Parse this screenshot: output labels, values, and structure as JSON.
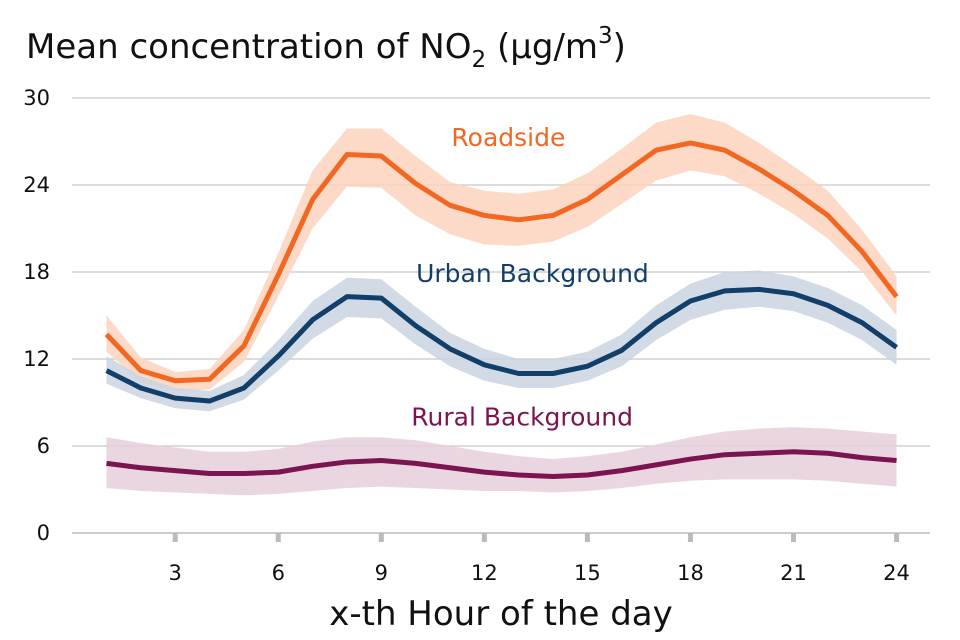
{
  "chart_data": {
    "type": "line",
    "title_parts": {
      "pre": "Mean concentration of NO",
      "sub": "2",
      "mid": " (µg/m",
      "sup": "3",
      "post": ")"
    },
    "xlabel": "x-th Hour of the day",
    "ylabel": "",
    "x": [
      1,
      2,
      3,
      4,
      5,
      6,
      7,
      8,
      9,
      10,
      11,
      12,
      13,
      14,
      15,
      16,
      17,
      18,
      19,
      20,
      21,
      22,
      23,
      24
    ],
    "xlim": [
      0,
      25
    ],
    "ylim": [
      0,
      30
    ],
    "xticks": [
      3,
      6,
      9,
      12,
      15,
      18,
      21,
      24
    ],
    "yticks": [
      0,
      6,
      12,
      18,
      24,
      30
    ],
    "grid": "horizontal",
    "series": [
      {
        "name": "Roadside",
        "color": "#f26722",
        "band_color": "#fbd3bd",
        "label_at": [
          12.7,
          26.7
        ],
        "values": [
          13.7,
          11.2,
          10.5,
          10.6,
          12.9,
          17.8,
          23.0,
          26.1,
          26.0,
          24.1,
          22.6,
          21.9,
          21.6,
          21.9,
          23.0,
          24.7,
          26.4,
          26.9,
          26.4,
          25.1,
          23.6,
          21.9,
          19.4,
          16.3
        ],
        "lower": [
          12.5,
          10.4,
          9.8,
          9.9,
          11.8,
          16.3,
          21.0,
          23.9,
          23.8,
          21.9,
          20.6,
          19.9,
          19.8,
          20.1,
          21.1,
          22.7,
          24.3,
          25.0,
          24.6,
          23.4,
          22.0,
          20.3,
          18.0,
          15.0
        ],
        "upper": [
          15.0,
          12.1,
          11.1,
          11.3,
          14.0,
          19.3,
          25.0,
          27.9,
          27.9,
          26.0,
          24.2,
          23.6,
          23.4,
          23.7,
          24.8,
          26.5,
          28.3,
          28.9,
          28.3,
          26.9,
          25.3,
          23.6,
          20.9,
          17.7
        ]
      },
      {
        "name": "Urban Background",
        "color": "#123f6a",
        "band_color": "#c9d3e0",
        "label_at": [
          13.4,
          17.3
        ],
        "values": [
          11.2,
          10.0,
          9.3,
          9.1,
          10.0,
          12.2,
          14.7,
          16.3,
          16.2,
          14.3,
          12.7,
          11.6,
          11.0,
          11.0,
          11.5,
          12.6,
          14.5,
          16.0,
          16.7,
          16.8,
          16.5,
          15.7,
          14.5,
          12.8
        ],
        "lower": [
          10.3,
          9.3,
          8.6,
          8.4,
          9.2,
          11.2,
          13.4,
          14.9,
          14.8,
          13.0,
          11.5,
          10.5,
          10.0,
          10.0,
          10.5,
          11.5,
          13.3,
          14.7,
          15.4,
          15.6,
          15.3,
          14.5,
          13.3,
          11.6
        ],
        "upper": [
          12.2,
          10.8,
          10.0,
          9.8,
          10.9,
          13.3,
          16.0,
          17.6,
          17.5,
          15.6,
          13.8,
          12.7,
          12.0,
          12.0,
          12.5,
          13.7,
          15.7,
          17.2,
          18.0,
          18.1,
          17.7,
          16.9,
          15.7,
          14.0
        ]
      },
      {
        "name": "Rural Background",
        "color": "#7b1450",
        "band_color": "#e6cfda",
        "label_at": [
          13.1,
          7.4
        ],
        "values": [
          4.8,
          4.5,
          4.3,
          4.1,
          4.1,
          4.2,
          4.6,
          4.9,
          5.0,
          4.8,
          4.5,
          4.2,
          4.0,
          3.9,
          4.0,
          4.3,
          4.7,
          5.1,
          5.4,
          5.5,
          5.6,
          5.5,
          5.2,
          5.0
        ],
        "lower": [
          3.1,
          2.9,
          2.8,
          2.7,
          2.6,
          2.7,
          2.9,
          3.1,
          3.2,
          3.1,
          3.0,
          2.9,
          2.9,
          2.8,
          2.9,
          3.1,
          3.4,
          3.6,
          3.7,
          3.7,
          3.7,
          3.6,
          3.4,
          3.2
        ],
        "upper": [
          6.6,
          6.2,
          5.9,
          5.6,
          5.6,
          5.8,
          6.3,
          6.6,
          6.6,
          6.4,
          6.0,
          5.6,
          5.3,
          5.1,
          5.3,
          5.6,
          6.1,
          6.6,
          7.0,
          7.2,
          7.3,
          7.2,
          7.0,
          6.8
        ]
      }
    ],
    "colors": {
      "grid": "#c8c8c8",
      "axis": "#cccccc",
      "tick_mark": "#bbbbbb",
      "text": "#111111"
    }
  }
}
